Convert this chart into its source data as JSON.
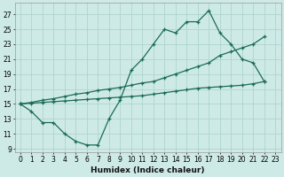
{
  "xlabel": "Humidex (Indice chaleur)",
  "bg_color": "#ceeae6",
  "grid_color": "#aed4cf",
  "line_color": "#1a6b5a",
  "xlim": [
    -0.5,
    23.5
  ],
  "ylim": [
    8.5,
    28.5
  ],
  "xticks": [
    0,
    1,
    2,
    3,
    4,
    5,
    6,
    7,
    8,
    9,
    10,
    11,
    12,
    13,
    14,
    15,
    16,
    17,
    18,
    19,
    20,
    21,
    22,
    23
  ],
  "xlabels": [
    "0",
    "1",
    "2",
    "3",
    "4",
    "5",
    "6",
    "7",
    "8",
    "9",
    "10",
    "11",
    "12",
    "13",
    "14",
    "15",
    "16",
    "17",
    "18",
    "19",
    "20",
    "21",
    "22",
    "23"
  ],
  "yticks": [
    9,
    11,
    13,
    15,
    17,
    19,
    21,
    23,
    25,
    27
  ],
  "hours_zigzag": [
    0,
    1,
    2,
    3,
    4,
    5,
    6,
    7,
    8,
    9,
    10,
    11,
    12,
    13,
    14,
    15,
    16,
    17,
    18,
    19,
    20,
    21,
    22
  ],
  "y_zigzag": [
    15,
    14,
    12.5,
    12.5,
    11,
    10,
    9.5,
    9.5,
    13,
    15.5,
    19.5,
    21,
    23,
    25,
    24.5,
    26,
    26,
    27.5,
    24.5,
    23,
    21,
    20.5,
    18
  ],
  "hours_upper": [
    0,
    1,
    2,
    3,
    4,
    5,
    6,
    7,
    8,
    9,
    10,
    11,
    12,
    13,
    14,
    15,
    16,
    17,
    18,
    19,
    20,
    21,
    22
  ],
  "y_upper": [
    15,
    15.2,
    15.5,
    15.7,
    16,
    16.3,
    16.5,
    16.8,
    17,
    17.2,
    17.5,
    17.8,
    18,
    18.5,
    19,
    19.5,
    20,
    20.5,
    21.5,
    22,
    22.5,
    23,
    24
  ],
  "hours_lower": [
    0,
    1,
    2,
    3,
    4,
    5,
    6,
    7,
    8,
    9,
    10,
    11,
    12,
    13,
    14,
    15,
    16,
    17,
    18,
    19,
    20,
    21,
    22
  ],
  "y_lower": [
    15,
    15.1,
    15.2,
    15.3,
    15.4,
    15.5,
    15.6,
    15.7,
    15.8,
    15.9,
    16,
    16.1,
    16.3,
    16.5,
    16.7,
    16.9,
    17.1,
    17.2,
    17.3,
    17.4,
    17.5,
    17.7,
    18
  ]
}
